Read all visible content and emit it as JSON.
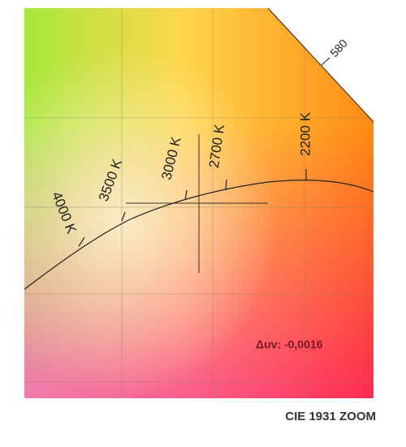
{
  "diagram": {
    "wavelength_label": "580",
    "cct_labels": [
      "4000 K",
      "3500 K",
      "3000 K",
      "2700 K",
      "2200 K"
    ],
    "duv": "Δuv: -0,0016",
    "title": "CIE 1931 ZOOM"
  }
}
